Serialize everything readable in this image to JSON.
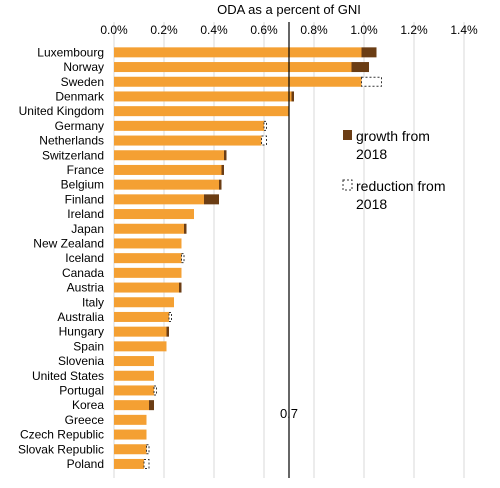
{
  "chart_data": {
    "type": "bar",
    "orientation": "horizontal",
    "stacked": true,
    "title": "ODA as a percent of GNI",
    "xlim": [
      0,
      1.4
    ],
    "x_ticks": [
      0,
      0.2,
      0.4,
      0.6,
      0.8,
      1.0,
      1.2,
      1.4
    ],
    "x_tick_labels": [
      "0.0%",
      "0.2%",
      "0.4%",
      "0.6%",
      "0.8%",
      "1.0%",
      "1.2%",
      "1.4%"
    ],
    "grid": "vertical",
    "legend_position": "right",
    "categories": [
      "Luxembourg",
      "Norway",
      "Sweden",
      "Denmark",
      "United Kingdom",
      "Germany",
      "Netherlands",
      "Switzerland",
      "France",
      "Belgium",
      "Finland",
      "Ireland",
      "Japan",
      "New Zealand",
      "Iceland",
      "Canada",
      "Austria",
      "Italy",
      "Australia",
      "Hungary",
      "Spain",
      "Slovenia",
      "United States",
      "Portugal",
      "Korea",
      "Greece",
      "Czech Republic",
      "Slovak Republic",
      "Poland"
    ],
    "series": [
      {
        "name": "",
        "role": "base",
        "color": "#f4a033",
        "values": [
          0.99,
          0.95,
          0.99,
          0.71,
          0.7,
          0.6,
          0.59,
          0.44,
          0.43,
          0.42,
          0.36,
          0.32,
          0.28,
          0.27,
          0.27,
          0.27,
          0.26,
          0.24,
          0.22,
          0.21,
          0.21,
          0.16,
          0.16,
          0.16,
          0.14,
          0.13,
          0.13,
          0.13,
          0.12
        ]
      },
      {
        "name": "growth from 2018",
        "color": "#6b3d14",
        "values": [
          0.06,
          0.07,
          0,
          0.01,
          0,
          0,
          0,
          0.01,
          0.01,
          0.01,
          0.06,
          0,
          0.01,
          0,
          0,
          0,
          0.01,
          0,
          0,
          0.01,
          0,
          0,
          0,
          0,
          0.02,
          0,
          0,
          0,
          0
        ]
      },
      {
        "name": "reduction from 2018",
        "style": "dashed-outline",
        "values": [
          0,
          0,
          0.08,
          0,
          0,
          0.01,
          0.02,
          0,
          0,
          0,
          0,
          0,
          0,
          0,
          0.01,
          0,
          0,
          0,
          0.01,
          0,
          0,
          0,
          0,
          0.01,
          0,
          0,
          0,
          0.01,
          0.02
        ]
      }
    ],
    "reference_line": {
      "value": 0.7,
      "label": "0.7"
    }
  }
}
